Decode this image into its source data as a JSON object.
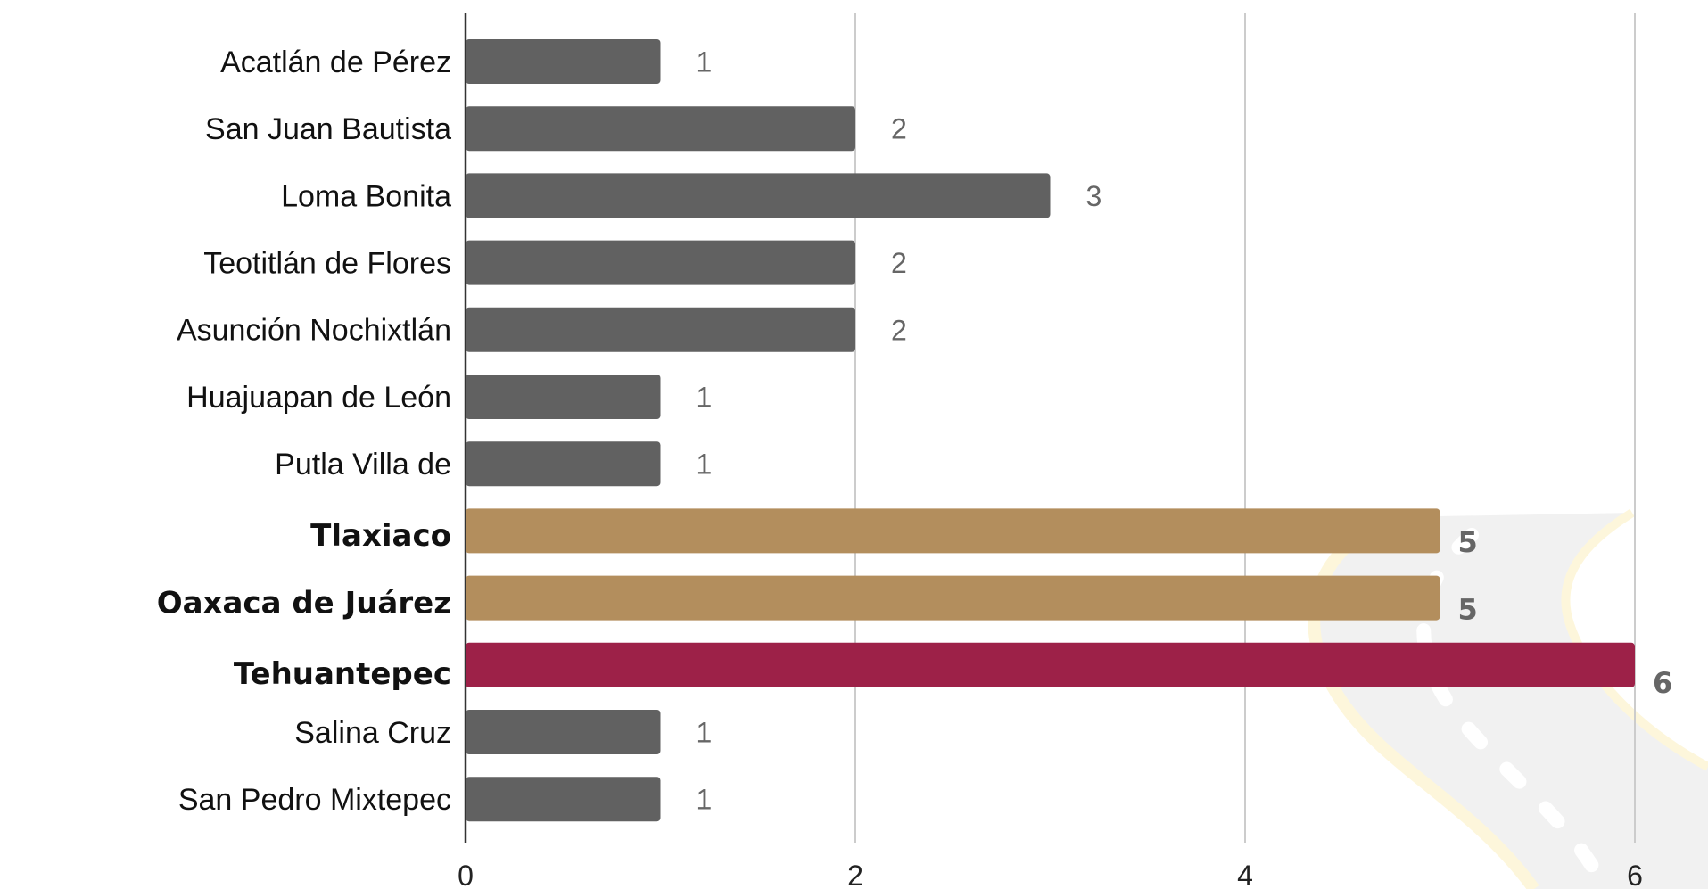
{
  "chart_data": {
    "type": "bar",
    "orientation": "horizontal",
    "categories": [
      "Acatlán de Pérez",
      "San Juan Bautista",
      "Loma Bonita",
      "Teotitlán de Flores",
      "Asunción Nochixtlán",
      "Huajuapan de León",
      "Putla Villa de",
      "Tlaxiaco",
      "Oaxaca de Juárez",
      "Tehuantepec",
      "Salina Cruz",
      "San Pedro Mixtepec"
    ],
    "values": [
      1,
      2,
      3,
      2,
      2,
      1,
      1,
      5,
      5,
      6,
      1,
      1
    ],
    "bar_colors": [
      "#616161",
      "#616161",
      "#616161",
      "#616161",
      "#616161",
      "#616161",
      "#616161",
      "#b38e5d",
      "#b38e5d",
      "#9d2148",
      "#616161",
      "#616161"
    ],
    "highlight": [
      false,
      false,
      false,
      false,
      false,
      false,
      false,
      true,
      true,
      true,
      false,
      false
    ],
    "xlim": [
      0,
      6
    ],
    "xticks": [
      "0",
      "2",
      "4",
      "6"
    ],
    "grid": true,
    "title": "",
    "xlabel": "",
    "ylabel": ""
  },
  "colors": {
    "default_bar": "#616161",
    "gold": "#b38e5d",
    "maroon": "#9d2148",
    "gridline": "#cccccc",
    "axis": "#333333",
    "value_label": "#666666"
  },
  "background_icon": "road-icon"
}
